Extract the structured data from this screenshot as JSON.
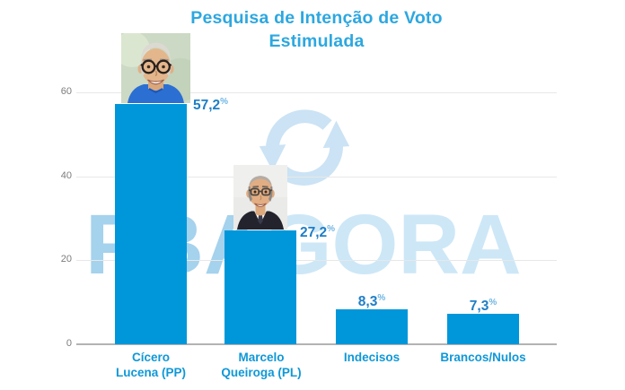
{
  "title": {
    "line1": "Pesquisa de Intenção de Voto",
    "line2": "Estimulada"
  },
  "watermark": {
    "left": "PBA",
    "right": "GORA"
  },
  "percent_sign": "%",
  "y_axis": {
    "ticks": [
      "60",
      "40",
      "20",
      "0"
    ]
  },
  "photos": [
    "Cícero Lucena portrait",
    "Marcelo Queiroga portrait"
  ],
  "chart_data": {
    "type": "bar",
    "title": "Pesquisa de Intenção de Voto Estimulada",
    "categories": [
      "Cícero Lucena (PP)",
      "Marcelo Queiroga (PL)",
      "Indecisos",
      "Brancos/Nulos"
    ],
    "values": [
      57.2,
      27.2,
      8.3,
      7.3
    ],
    "value_labels": [
      "57,2",
      "27,2",
      "8,3",
      "7,3"
    ],
    "category_lines": [
      [
        "Cícero",
        "Lucena (PP)"
      ],
      [
        "Marcelo",
        "Queiroga (PL)"
      ],
      [
        "Indecisos"
      ],
      [
        "Brancos/Nulos"
      ]
    ],
    "ylim": [
      0,
      60
    ],
    "yticks": [
      0,
      20,
      40,
      60
    ],
    "xlabel": "",
    "ylabel": "",
    "grid": true,
    "legend": false,
    "bar_color": "#0097da"
  },
  "colors": {
    "title": "#2da7e0",
    "bar": "#0097da",
    "value_label": "#1f7ec6",
    "percent": "#6fb5e2",
    "category_label": "#0f98d7",
    "tick_label": "#7c7c7c",
    "watermark_left": "#a5d2ed",
    "watermark_right": "#cde7f7",
    "refresh_icon": "#cbe3f4"
  }
}
